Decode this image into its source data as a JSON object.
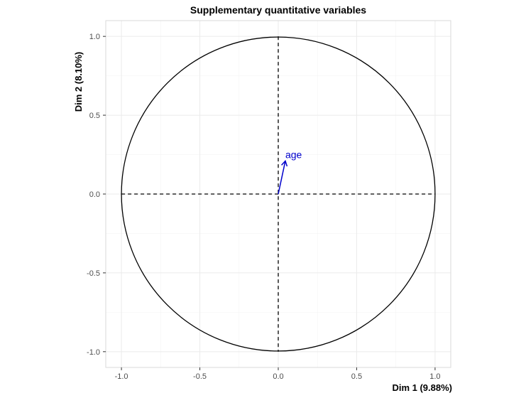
{
  "chart_data": {
    "type": "scatter",
    "title": "Supplementary quantitative variables",
    "xlabel": "Dim 1 (9.88%)",
    "ylabel": "Dim 2 (8.10%)",
    "xlim": [
      -1.1,
      1.1
    ],
    "ylim": [
      -1.1,
      1.1
    ],
    "xticks": [
      -1.0,
      -0.5,
      0.0,
      0.5,
      1.0
    ],
    "yticks": [
      -1.0,
      -0.5,
      0.0,
      0.5,
      1.0
    ],
    "xtick_labels": [
      "-1.0",
      "-0.5",
      "0.0",
      "0.5",
      "1.0"
    ],
    "ytick_labels": [
      "-1.0",
      "-0.5",
      "0.0",
      "0.5",
      "1.0"
    ],
    "grid": true,
    "unit_circle_radius": 1.0,
    "vectors": [
      {
        "label": "age",
        "x": 0.045,
        "y": 0.21,
        "color": "#0000cc"
      }
    ]
  }
}
